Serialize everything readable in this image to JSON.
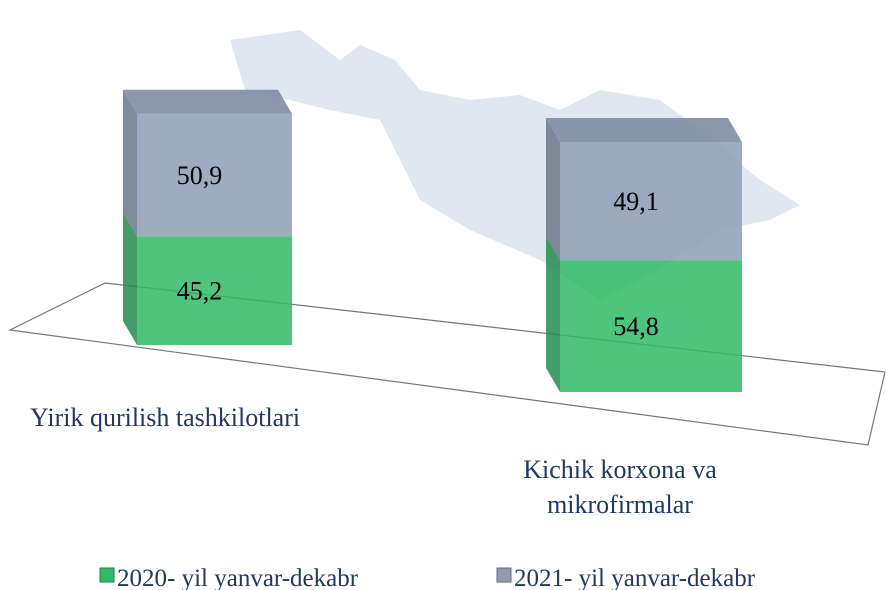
{
  "chart_data": {
    "type": "bar3d-stacked",
    "categories": [
      "Yirik qurilish tashkilotlari",
      "Kichik korxona va mikrofirmalar"
    ],
    "series": [
      {
        "name": "2020- yil yanvar-dekabr",
        "color": "#2fba66",
        "values": [
          45.2,
          54.8
        ],
        "value_labels": [
          "45,2",
          "54,8"
        ]
      },
      {
        "name": "2021- yil yanvar-dekabr",
        "color": "#8e9cb4",
        "values": [
          50.9,
          49.1
        ],
        "value_labels": [
          "50,9",
          "49,1"
        ]
      }
    ],
    "legend": "bottom"
  }
}
